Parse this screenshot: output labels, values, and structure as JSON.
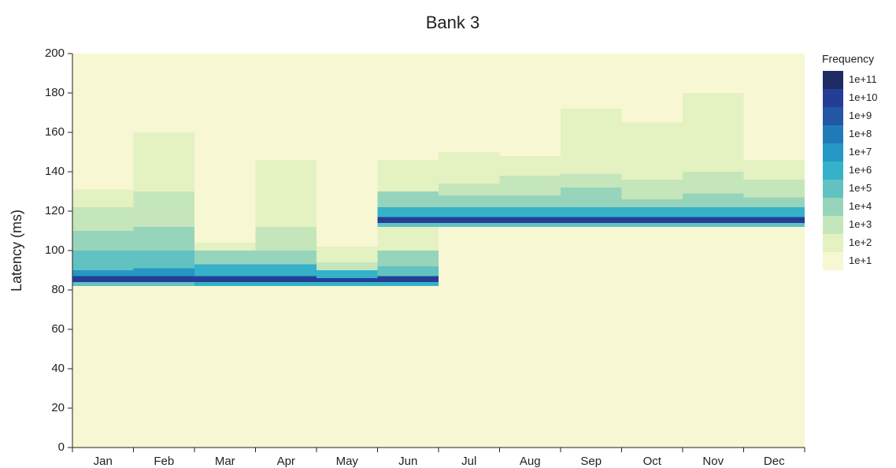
{
  "chart_data": {
    "type": "heatmap",
    "title": "Bank 3",
    "y_label": "Latency (ms)",
    "categories": [
      "Jan",
      "Feb",
      "Mar",
      "Apr",
      "May",
      "Jun",
      "Jul",
      "Aug",
      "Sep",
      "Oct",
      "Nov",
      "Dec"
    ],
    "ylim": [
      0,
      200
    ],
    "yticks": [
      0,
      20,
      40,
      60,
      80,
      100,
      120,
      140,
      160,
      180,
      200
    ],
    "colorbar": {
      "title": "Frequency",
      "ticks": [
        {
          "value": 100000000000,
          "label": "1e+11"
        },
        {
          "value": 10000000000,
          "label": "1e+10"
        },
        {
          "value": 1000000000,
          "label": "1e+9"
        },
        {
          "value": 100000000,
          "label": "1e+8"
        },
        {
          "value": 10000000,
          "label": "1e+7"
        },
        {
          "value": 1000000,
          "label": "1e+6"
        },
        {
          "value": 100000,
          "label": "1e+5"
        },
        {
          "value": 10000,
          "label": "1e+4"
        },
        {
          "value": 1000,
          "label": "1e+3"
        },
        {
          "value": 100,
          "label": "1e+2"
        },
        {
          "value": 10,
          "label": "1e+1"
        }
      ],
      "colors": [
        "#1d2a63",
        "#243e96",
        "#2257a6",
        "#1f7bb8",
        "#2497c4",
        "#35b1c9",
        "#62c2c2",
        "#97d4bc",
        "#c5e6bb",
        "#e4f1c1",
        "#f7f7d4"
      ]
    },
    "bands": [
      [
        [
          82,
          84,
          100000
        ],
        [
          84,
          87,
          10000000000
        ],
        [
          87,
          90,
          10000000
        ],
        [
          90,
          100,
          100000
        ],
        [
          100,
          110,
          10000
        ],
        [
          110,
          122,
          1000
        ],
        [
          122,
          131,
          100
        ]
      ],
      [
        [
          82,
          84,
          100000
        ],
        [
          84,
          87,
          10000000000
        ],
        [
          87,
          91,
          10000000
        ],
        [
          91,
          100,
          100000
        ],
        [
          100,
          112,
          10000
        ],
        [
          112,
          130,
          1000
        ],
        [
          130,
          160,
          100
        ]
      ],
      [
        [
          82,
          84,
          1000000
        ],
        [
          84,
          87,
          10000000000
        ],
        [
          87,
          93,
          1000000
        ],
        [
          93,
          100,
          10000
        ],
        [
          100,
          104,
          100
        ]
      ],
      [
        [
          82,
          84,
          1000000
        ],
        [
          84,
          87,
          10000000000
        ],
        [
          87,
          93,
          1000000
        ],
        [
          93,
          100,
          10000
        ],
        [
          100,
          112,
          1000
        ],
        [
          112,
          146,
          100
        ]
      ],
      [
        [
          82,
          84,
          1000000
        ],
        [
          84,
          86,
          10000000000
        ],
        [
          86,
          90,
          1000000
        ],
        [
          90,
          94,
          1000
        ],
        [
          94,
          102,
          100
        ]
      ],
      [
        [
          82,
          84,
          1000000
        ],
        [
          84,
          87,
          10000000000
        ],
        [
          87,
          92,
          100000
        ],
        [
          92,
          100,
          10000
        ],
        [
          100,
          112,
          100
        ],
        [
          112,
          114,
          100000
        ],
        [
          114,
          117,
          10000000000
        ],
        [
          117,
          122,
          1000000
        ],
        [
          122,
          130,
          10000
        ],
        [
          130,
          146,
          100
        ]
      ],
      [
        [
          112,
          114,
          100000
        ],
        [
          114,
          117,
          10000000000
        ],
        [
          117,
          122,
          1000000
        ],
        [
          122,
          128,
          10000
        ],
        [
          128,
          134,
          1000
        ],
        [
          134,
          150,
          100
        ]
      ],
      [
        [
          112,
          114,
          100000
        ],
        [
          114,
          117,
          10000000000
        ],
        [
          117,
          122,
          1000000
        ],
        [
          122,
          128,
          10000
        ],
        [
          128,
          138,
          1000
        ],
        [
          138,
          148,
          100
        ]
      ],
      [
        [
          112,
          114,
          100000
        ],
        [
          114,
          117,
          10000000000
        ],
        [
          117,
          122,
          1000000
        ],
        [
          122,
          132,
          10000
        ],
        [
          132,
          139,
          1000
        ],
        [
          139,
          172,
          100
        ]
      ],
      [
        [
          112,
          114,
          100000
        ],
        [
          114,
          117,
          10000000000
        ],
        [
          117,
          122,
          1000000
        ],
        [
          122,
          126,
          10000
        ],
        [
          126,
          136,
          1000
        ],
        [
          136,
          165,
          100
        ]
      ],
      [
        [
          112,
          114,
          100000
        ],
        [
          114,
          117,
          10000000000
        ],
        [
          117,
          122,
          1000000
        ],
        [
          122,
          129,
          10000
        ],
        [
          129,
          140,
          1000
        ],
        [
          140,
          180,
          100
        ]
      ],
      [
        [
          112,
          114,
          100000
        ],
        [
          114,
          117,
          10000000000
        ],
        [
          117,
          122,
          1000000
        ],
        [
          122,
          127,
          10000
        ],
        [
          127,
          136,
          1000
        ],
        [
          136,
          146,
          100
        ]
      ]
    ]
  }
}
